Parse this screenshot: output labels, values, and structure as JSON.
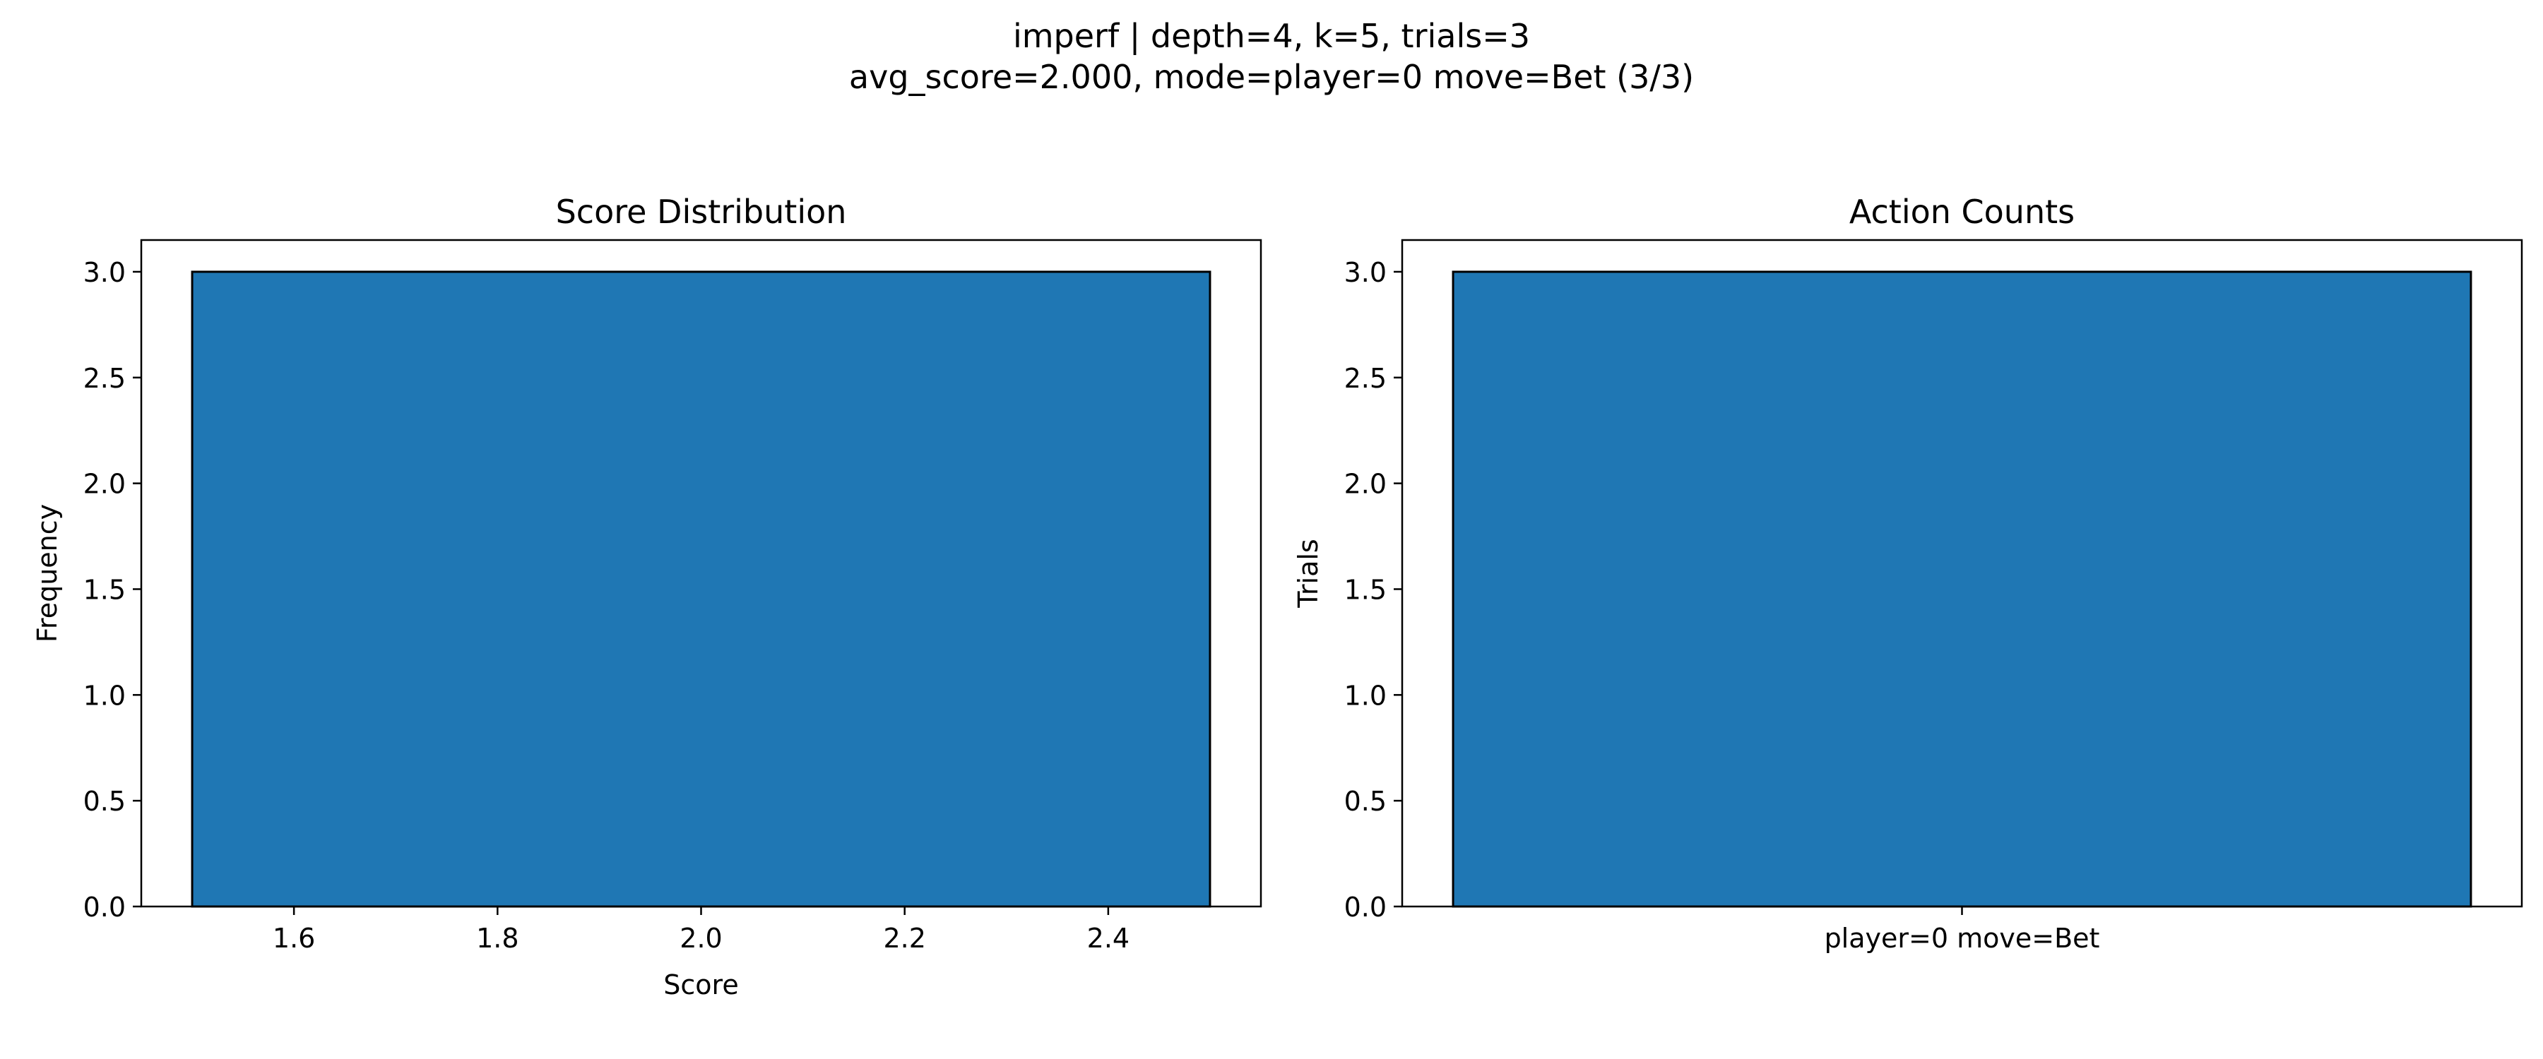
{
  "figure": {
    "suptitle_line1": "imperf | depth=4, k=5, trials=3",
    "suptitle_line2": "avg_score=2.000, mode=player=0 move=Bet (3/3)"
  },
  "colors": {
    "bar": "#1f77b4",
    "edge": "#000000",
    "axis": "#000000"
  },
  "chart_data": [
    {
      "type": "bar",
      "title": "Score Distribution",
      "xlabel": "Score",
      "ylabel": "Frequency",
      "bins": [
        {
          "x0": 1.5,
          "x1": 2.5,
          "value": 3
        }
      ],
      "xlim": [
        1.45,
        2.55
      ],
      "ylim": [
        0,
        3.15
      ],
      "xticks": [
        1.6,
        1.8,
        2.0,
        2.2,
        2.4
      ],
      "xtick_labels": [
        "1.6",
        "1.8",
        "2.0",
        "2.2",
        "2.4"
      ],
      "yticks": [
        0,
        0.5,
        1.0,
        1.5,
        2.0,
        2.5,
        3.0
      ],
      "ytick_labels": [
        "0.0",
        "0.5",
        "1.0",
        "1.5",
        "2.0",
        "2.5",
        "3.0"
      ],
      "grid": false
    },
    {
      "type": "bar",
      "title": "Action Counts",
      "xlabel": "",
      "ylabel": "Trials",
      "categories": [
        "player=0 move=Bet"
      ],
      "values": [
        3
      ],
      "ylim": [
        0,
        3.15
      ],
      "yticks": [
        0,
        0.5,
        1.0,
        1.5,
        2.0,
        2.5,
        3.0
      ],
      "ytick_labels": [
        "0.0",
        "0.5",
        "1.0",
        "1.5",
        "2.0",
        "2.5",
        "3.0"
      ],
      "grid": false
    }
  ]
}
